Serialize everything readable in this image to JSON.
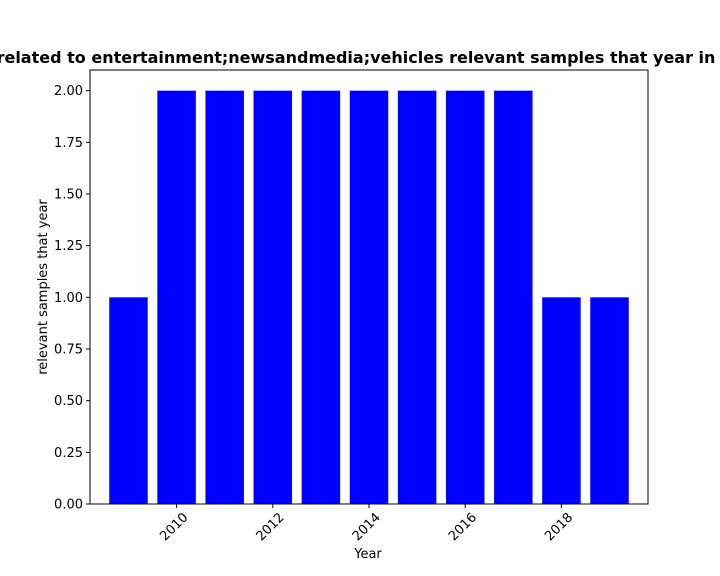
{
  "chart_data": {
    "type": "bar",
    "title": "related to entertainment;newsandmedia;vehicles relevant samples that year in",
    "xlabel": "Year",
    "ylabel": "relevant samples that year",
    "x": [
      2009,
      2010,
      2011,
      2012,
      2013,
      2014,
      2015,
      2016,
      2017,
      2018,
      2019
    ],
    "values": [
      1,
      2,
      2,
      2,
      2,
      2,
      2,
      2,
      2,
      1,
      1
    ],
    "xlim": [
      2008.2,
      2019.8
    ],
    "ylim": [
      0,
      2.1
    ],
    "xticks": [
      2010,
      2012,
      2014,
      2016,
      2018
    ],
    "xtick_labels": [
      "2010",
      "2012",
      "2014",
      "2016",
      "2018"
    ],
    "yticks": [
      0,
      0.25,
      0.5,
      0.75,
      1.0,
      1.25,
      1.5,
      1.75,
      2.0
    ],
    "ytick_labels": [
      "0.00",
      "0.25",
      "0.50",
      "0.75",
      "1.00",
      "1.25",
      "1.50",
      "1.75",
      "2.00"
    ],
    "bar_color": "#0000ff",
    "grid": false,
    "legend": "none"
  }
}
